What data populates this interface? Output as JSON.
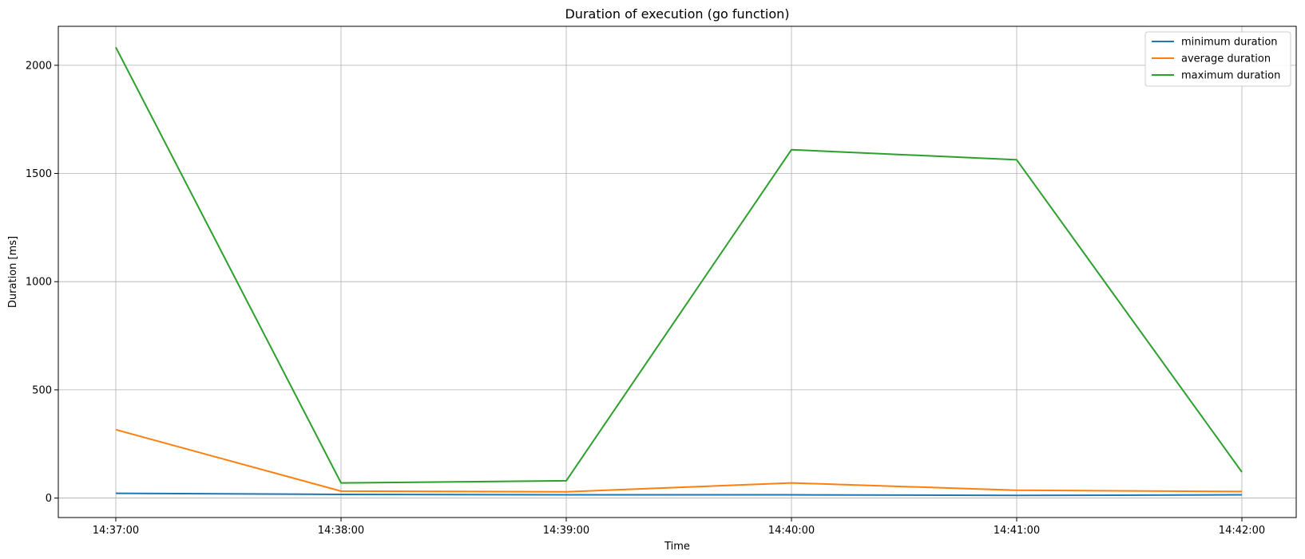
{
  "chart_data": {
    "type": "line",
    "title": "Duration of execution (go function)",
    "xlabel": "Time",
    "ylabel": "Duration [ms]",
    "x": [
      "14:37:00",
      "14:38:00",
      "14:39:00",
      "14:40:00",
      "14:41:00",
      "14:42:00"
    ],
    "ylim": [
      -90,
      2180
    ],
    "yticks": [
      0,
      500,
      1000,
      1500,
      2000
    ],
    "grid": true,
    "legend_position": "top-right",
    "series": [
      {
        "name": "minimum duration",
        "color": "#1f77b4",
        "values": [
          22,
          17,
          15,
          15,
          12,
          15
        ]
      },
      {
        "name": "average duration",
        "color": "#ff7f0e",
        "values": [
          316,
          32,
          29,
          70,
          36,
          30
        ]
      },
      {
        "name": "maximum duration",
        "color": "#2ca02c",
        "values": [
          2083,
          70,
          80,
          1610,
          1563,
          120
        ]
      }
    ]
  }
}
